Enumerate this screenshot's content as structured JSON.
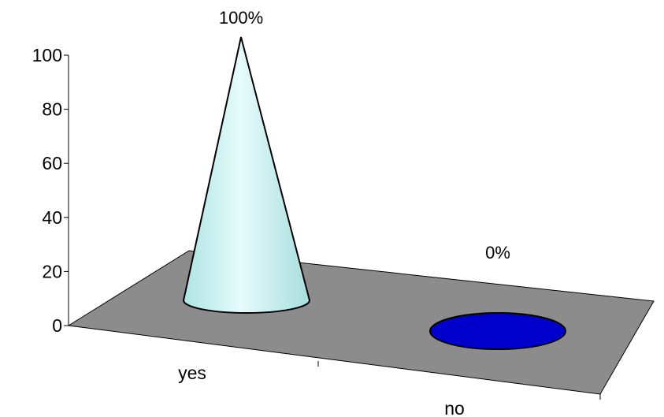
{
  "chart_data": {
    "type": "bar",
    "style": "3d-cone",
    "title": "",
    "xlabel": "",
    "ylabel": "",
    "categories": [
      "yes",
      "no"
    ],
    "series": [
      {
        "values": [
          100,
          0
        ],
        "data_labels": [
          "100%",
          "0%"
        ],
        "colors": [
          "#c8f2f2",
          "#0000cc"
        ]
      }
    ],
    "ylim": [
      0,
      100
    ],
    "yticks": [
      0,
      20,
      40,
      60,
      80,
      100
    ],
    "grid": false,
    "legend": "none",
    "colors": {
      "floor": "#8c8c8c",
      "outline": "#000000",
      "cone": "#c8f2f2",
      "zero_disc": "#0000cc"
    }
  }
}
